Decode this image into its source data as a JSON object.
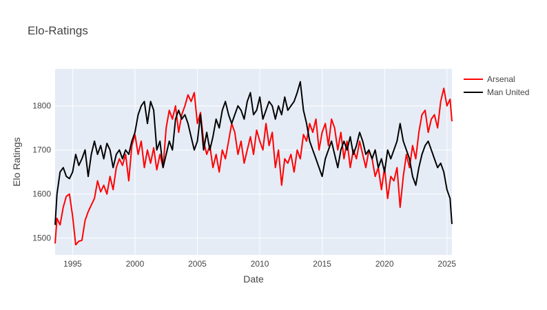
{
  "chart_data": {
    "type": "line",
    "title": "Elo-Ratings",
    "xlabel": "Date",
    "ylabel": "Elo Ratings",
    "x_type": "year",
    "xlim": [
      1993.6,
      2025.4
    ],
    "ylim": [
      1462,
      1884
    ],
    "x_ticks": [
      1995,
      2000,
      2005,
      2010,
      2015,
      2020,
      2025
    ],
    "y_ticks": [
      1500,
      1600,
      1700,
      1800
    ],
    "grid": true,
    "legend_position": "top-right",
    "series": [
      {
        "name": "Arsenal",
        "color": "#ff0000",
        "points": [
          [
            1993.6,
            1488
          ],
          [
            1993.75,
            1545
          ],
          [
            1994.0,
            1530
          ],
          [
            1994.25,
            1570
          ],
          [
            1994.5,
            1595
          ],
          [
            1994.75,
            1600
          ],
          [
            1995.0,
            1550
          ],
          [
            1995.25,
            1485
          ],
          [
            1995.5,
            1493
          ],
          [
            1995.75,
            1495
          ],
          [
            1996.0,
            1540
          ],
          [
            1996.25,
            1560
          ],
          [
            1996.5,
            1575
          ],
          [
            1996.75,
            1590
          ],
          [
            1997.0,
            1630
          ],
          [
            1997.25,
            1605
          ],
          [
            1997.5,
            1620
          ],
          [
            1997.75,
            1600
          ],
          [
            1998.0,
            1640
          ],
          [
            1998.25,
            1610
          ],
          [
            1998.5,
            1660
          ],
          [
            1998.75,
            1680
          ],
          [
            1999.0,
            1665
          ],
          [
            1999.25,
            1690
          ],
          [
            1999.5,
            1630
          ],
          [
            1999.75,
            1710
          ],
          [
            2000.0,
            1735
          ],
          [
            2000.25,
            1690
          ],
          [
            2000.5,
            1720
          ],
          [
            2000.75,
            1660
          ],
          [
            2001.0,
            1700
          ],
          [
            2001.25,
            1670
          ],
          [
            2001.5,
            1705
          ],
          [
            2001.75,
            1655
          ],
          [
            2002.0,
            1690
          ],
          [
            2002.25,
            1660
          ],
          [
            2002.5,
            1750
          ],
          [
            2002.75,
            1790
          ],
          [
            2003.0,
            1770
          ],
          [
            2003.25,
            1800
          ],
          [
            2003.5,
            1740
          ],
          [
            2003.75,
            1780
          ],
          [
            2004.0,
            1800
          ],
          [
            2004.25,
            1825
          ],
          [
            2004.5,
            1810
          ],
          [
            2004.75,
            1830
          ],
          [
            2005.0,
            1760
          ],
          [
            2005.25,
            1785
          ],
          [
            2005.5,
            1720
          ],
          [
            2005.75,
            1690
          ],
          [
            2006.0,
            1710
          ],
          [
            2006.25,
            1660
          ],
          [
            2006.5,
            1690
          ],
          [
            2006.75,
            1650
          ],
          [
            2007.0,
            1700
          ],
          [
            2007.25,
            1680
          ],
          [
            2007.5,
            1720
          ],
          [
            2007.75,
            1760
          ],
          [
            2008.0,
            1740
          ],
          [
            2008.25,
            1690
          ],
          [
            2008.5,
            1720
          ],
          [
            2008.75,
            1670
          ],
          [
            2009.0,
            1700
          ],
          [
            2009.25,
            1730
          ],
          [
            2009.5,
            1690
          ],
          [
            2009.75,
            1745
          ],
          [
            2010.0,
            1720
          ],
          [
            2010.25,
            1700
          ],
          [
            2010.5,
            1760
          ],
          [
            2010.75,
            1710
          ],
          [
            2011.0,
            1740
          ],
          [
            2011.25,
            1660
          ],
          [
            2011.5,
            1700
          ],
          [
            2011.75,
            1620
          ],
          [
            2012.0,
            1680
          ],
          [
            2012.25,
            1670
          ],
          [
            2012.5,
            1690
          ],
          [
            2012.75,
            1650
          ],
          [
            2013.0,
            1700
          ],
          [
            2013.25,
            1680
          ],
          [
            2013.5,
            1735
          ],
          [
            2013.75,
            1720
          ],
          [
            2014.0,
            1760
          ],
          [
            2014.25,
            1740
          ],
          [
            2014.5,
            1770
          ],
          [
            2014.75,
            1700
          ],
          [
            2015.0,
            1740
          ],
          [
            2015.25,
            1760
          ],
          [
            2015.5,
            1710
          ],
          [
            2015.75,
            1770
          ],
          [
            2016.0,
            1750
          ],
          [
            2016.25,
            1700
          ],
          [
            2016.5,
            1740
          ],
          [
            2016.75,
            1680
          ],
          [
            2017.0,
            1720
          ],
          [
            2017.25,
            1660
          ],
          [
            2017.5,
            1700
          ],
          [
            2017.75,
            1680
          ],
          [
            2018.0,
            1720
          ],
          [
            2018.25,
            1690
          ],
          [
            2018.5,
            1660
          ],
          [
            2018.75,
            1700
          ],
          [
            2019.0,
            1680
          ],
          [
            2019.25,
            1640
          ],
          [
            2019.5,
            1660
          ],
          [
            2019.75,
            1610
          ],
          [
            2020.0,
            1660
          ],
          [
            2020.25,
            1590
          ],
          [
            2020.5,
            1640
          ],
          [
            2020.75,
            1630
          ],
          [
            2021.0,
            1660
          ],
          [
            2021.25,
            1570
          ],
          [
            2021.5,
            1640
          ],
          [
            2021.75,
            1690
          ],
          [
            2022.0,
            1660
          ],
          [
            2022.25,
            1710
          ],
          [
            2022.5,
            1680
          ],
          [
            2022.75,
            1740
          ],
          [
            2023.0,
            1780
          ],
          [
            2023.25,
            1790
          ],
          [
            2023.5,
            1740
          ],
          [
            2023.75,
            1770
          ],
          [
            2024.0,
            1780
          ],
          [
            2024.25,
            1750
          ],
          [
            2024.5,
            1810
          ],
          [
            2024.75,
            1840
          ],
          [
            2025.0,
            1800
          ],
          [
            2025.25,
            1815
          ],
          [
            2025.4,
            1765
          ]
        ]
      },
      {
        "name": "Man United",
        "color": "#000000",
        "points": [
          [
            1993.6,
            1530
          ],
          [
            1993.75,
            1600
          ],
          [
            1994.0,
            1650
          ],
          [
            1994.25,
            1660
          ],
          [
            1994.5,
            1640
          ],
          [
            1994.75,
            1635
          ],
          [
            1995.0,
            1650
          ],
          [
            1995.25,
            1690
          ],
          [
            1995.5,
            1665
          ],
          [
            1995.75,
            1680
          ],
          [
            1996.0,
            1700
          ],
          [
            1996.25,
            1640
          ],
          [
            1996.5,
            1690
          ],
          [
            1996.75,
            1720
          ],
          [
            1997.0,
            1690
          ],
          [
            1997.25,
            1710
          ],
          [
            1997.5,
            1680
          ],
          [
            1997.75,
            1715
          ],
          [
            1998.0,
            1700
          ],
          [
            1998.25,
            1660
          ],
          [
            1998.5,
            1690
          ],
          [
            1998.75,
            1700
          ],
          [
            1999.0,
            1680
          ],
          [
            1999.25,
            1700
          ],
          [
            1999.5,
            1690
          ],
          [
            1999.75,
            1720
          ],
          [
            2000.0,
            1740
          ],
          [
            2000.25,
            1780
          ],
          [
            2000.5,
            1800
          ],
          [
            2000.75,
            1810
          ],
          [
            2001.0,
            1760
          ],
          [
            2001.25,
            1810
          ],
          [
            2001.5,
            1790
          ],
          [
            2001.75,
            1700
          ],
          [
            2002.0,
            1720
          ],
          [
            2002.25,
            1660
          ],
          [
            2002.5,
            1690
          ],
          [
            2002.75,
            1720
          ],
          [
            2003.0,
            1700
          ],
          [
            2003.25,
            1770
          ],
          [
            2003.5,
            1790
          ],
          [
            2003.75,
            1770
          ],
          [
            2004.0,
            1780
          ],
          [
            2004.25,
            1760
          ],
          [
            2004.5,
            1730
          ],
          [
            2004.75,
            1700
          ],
          [
            2005.0,
            1720
          ],
          [
            2005.25,
            1780
          ],
          [
            2005.5,
            1700
          ],
          [
            2005.75,
            1740
          ],
          [
            2006.0,
            1700
          ],
          [
            2006.25,
            1730
          ],
          [
            2006.5,
            1770
          ],
          [
            2006.75,
            1750
          ],
          [
            2007.0,
            1790
          ],
          [
            2007.25,
            1810
          ],
          [
            2007.5,
            1780
          ],
          [
            2007.75,
            1760
          ],
          [
            2008.0,
            1780
          ],
          [
            2008.25,
            1800
          ],
          [
            2008.5,
            1790
          ],
          [
            2008.75,
            1770
          ],
          [
            2009.0,
            1810
          ],
          [
            2009.25,
            1830
          ],
          [
            2009.5,
            1780
          ],
          [
            2009.75,
            1790
          ],
          [
            2010.0,
            1820
          ],
          [
            2010.25,
            1770
          ],
          [
            2010.5,
            1790
          ],
          [
            2010.75,
            1810
          ],
          [
            2011.0,
            1800
          ],
          [
            2011.25,
            1770
          ],
          [
            2011.5,
            1800
          ],
          [
            2011.75,
            1780
          ],
          [
            2012.0,
            1820
          ],
          [
            2012.25,
            1790
          ],
          [
            2012.5,
            1800
          ],
          [
            2012.75,
            1810
          ],
          [
            2013.0,
            1830
          ],
          [
            2013.25,
            1855
          ],
          [
            2013.5,
            1790
          ],
          [
            2013.75,
            1760
          ],
          [
            2014.0,
            1720
          ],
          [
            2014.25,
            1700
          ],
          [
            2014.5,
            1680
          ],
          [
            2014.75,
            1660
          ],
          [
            2015.0,
            1640
          ],
          [
            2015.25,
            1680
          ],
          [
            2015.5,
            1700
          ],
          [
            2015.75,
            1720
          ],
          [
            2016.0,
            1690
          ],
          [
            2016.25,
            1660
          ],
          [
            2016.5,
            1700
          ],
          [
            2016.75,
            1720
          ],
          [
            2017.0,
            1700
          ],
          [
            2017.25,
            1730
          ],
          [
            2017.5,
            1690
          ],
          [
            2017.75,
            1710
          ],
          [
            2018.0,
            1740
          ],
          [
            2018.25,
            1720
          ],
          [
            2018.5,
            1690
          ],
          [
            2018.75,
            1700
          ],
          [
            2019.0,
            1680
          ],
          [
            2019.25,
            1700
          ],
          [
            2019.5,
            1660
          ],
          [
            2019.75,
            1680
          ],
          [
            2020.0,
            1650
          ],
          [
            2020.25,
            1700
          ],
          [
            2020.5,
            1680
          ],
          [
            2020.75,
            1700
          ],
          [
            2021.0,
            1720
          ],
          [
            2021.25,
            1760
          ],
          [
            2021.5,
            1720
          ],
          [
            2021.75,
            1700
          ],
          [
            2022.0,
            1680
          ],
          [
            2022.25,
            1640
          ],
          [
            2022.5,
            1620
          ],
          [
            2022.75,
            1660
          ],
          [
            2023.0,
            1690
          ],
          [
            2023.25,
            1710
          ],
          [
            2023.5,
            1720
          ],
          [
            2023.75,
            1700
          ],
          [
            2024.0,
            1680
          ],
          [
            2024.25,
            1660
          ],
          [
            2024.5,
            1670
          ],
          [
            2024.75,
            1650
          ],
          [
            2025.0,
            1610
          ],
          [
            2025.25,
            1590
          ],
          [
            2025.4,
            1532
          ]
        ]
      }
    ]
  }
}
